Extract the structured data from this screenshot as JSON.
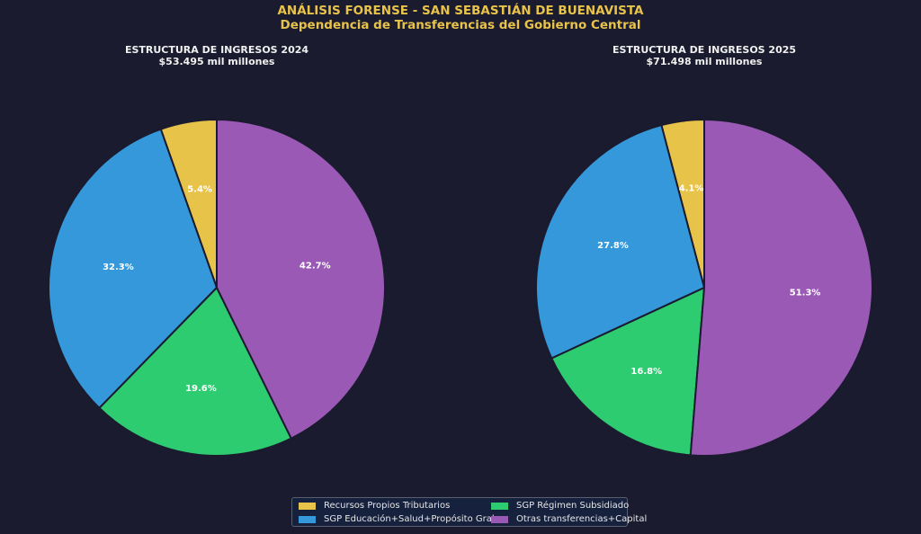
{
  "header": {
    "title": "ANÁLISIS FORENSE - SAN SEBASTIÁN DE BUENAVISTA",
    "subtitle": "Dependencia de Transferencias del Gobierno Central"
  },
  "chart_data": [
    {
      "type": "pie",
      "title": "ESTRUCTURA DE INGRESOS 2024",
      "subtitle": "$53.495 mil millones",
      "start_angle": "top",
      "direction": "counterclockwise",
      "categories": [
        "Recursos Propios Tributarios",
        "SGP Educación+Salud+Propósito Gral.",
        "SGP Régimen Subsidiado",
        "Otras transferencias+Capital"
      ],
      "values": [
        5.4,
        32.3,
        19.6,
        42.7
      ],
      "labels": [
        "5.4%",
        "32.3%",
        "19.6%",
        "42.7%"
      ]
    },
    {
      "type": "pie",
      "title": "ESTRUCTURA DE INGRESOS 2025",
      "subtitle": "$71.498 mil millones",
      "start_angle": "top",
      "direction": "counterclockwise",
      "categories": [
        "Recursos Propios Tributarios",
        "SGP Educación+Salud+Propósito Gral.",
        "SGP Régimen Subsidiado",
        "Otras transferencias+Capital"
      ],
      "values": [
        4.1,
        27.8,
        16.8,
        51.3
      ],
      "labels": [
        "4.1%",
        "27.8%",
        "16.8%",
        "51.3%"
      ]
    }
  ],
  "colors": [
    "#e8c34a",
    "#3498db",
    "#2ecc71",
    "#9b59b6"
  ],
  "legend": {
    "position": "bottom-center",
    "items": [
      {
        "label": "Recursos Propios Tributarios",
        "color": "#e8c34a"
      },
      {
        "label": "SGP Educación+Salud+Propósito Gral.",
        "color": "#3498db"
      },
      {
        "label": "SGP Régimen Subsidiado",
        "color": "#2ecc71"
      },
      {
        "label": "Otras transferencias+Capital",
        "color": "#9b59b6"
      }
    ]
  }
}
